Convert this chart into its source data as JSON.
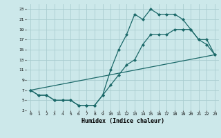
{
  "xlabel": "Humidex (Indice chaleur)",
  "bg_color": "#cce8ea",
  "grid_color": "#aacdd0",
  "line_color": "#1a6868",
  "xlim": [
    -0.5,
    23.5
  ],
  "ylim": [
    3,
    24
  ],
  "xticks": [
    0,
    1,
    2,
    3,
    4,
    5,
    6,
    7,
    8,
    9,
    10,
    11,
    12,
    13,
    14,
    15,
    16,
    17,
    18,
    19,
    20,
    21,
    22,
    23
  ],
  "yticks": [
    3,
    5,
    7,
    9,
    11,
    13,
    15,
    17,
    19,
    21,
    23
  ],
  "line1_x": [
    0,
    1,
    2,
    3,
    4,
    5,
    6,
    7,
    8,
    9,
    10,
    11,
    12,
    13,
    14,
    15,
    16,
    17,
    18,
    19,
    20,
    21,
    22,
    23
  ],
  "line1_y": [
    7,
    6,
    6,
    5,
    5,
    5,
    4,
    4,
    4,
    6,
    11,
    15,
    18,
    22,
    21,
    23,
    22,
    22,
    22,
    21,
    19,
    17,
    16,
    14
  ],
  "line2_x": [
    0,
    1,
    2,
    3,
    4,
    5,
    6,
    7,
    8,
    9,
    10,
    11,
    12,
    13,
    14,
    15,
    16,
    17,
    18,
    19,
    20,
    21,
    22,
    23
  ],
  "line2_y": [
    7,
    6,
    6,
    5,
    5,
    5,
    4,
    4,
    4,
    6,
    8,
    10,
    12,
    13,
    16,
    18,
    18,
    18,
    19,
    19,
    19,
    17,
    17,
    14
  ],
  "line3_x": [
    0,
    23
  ],
  "line3_y": [
    7,
    14
  ]
}
